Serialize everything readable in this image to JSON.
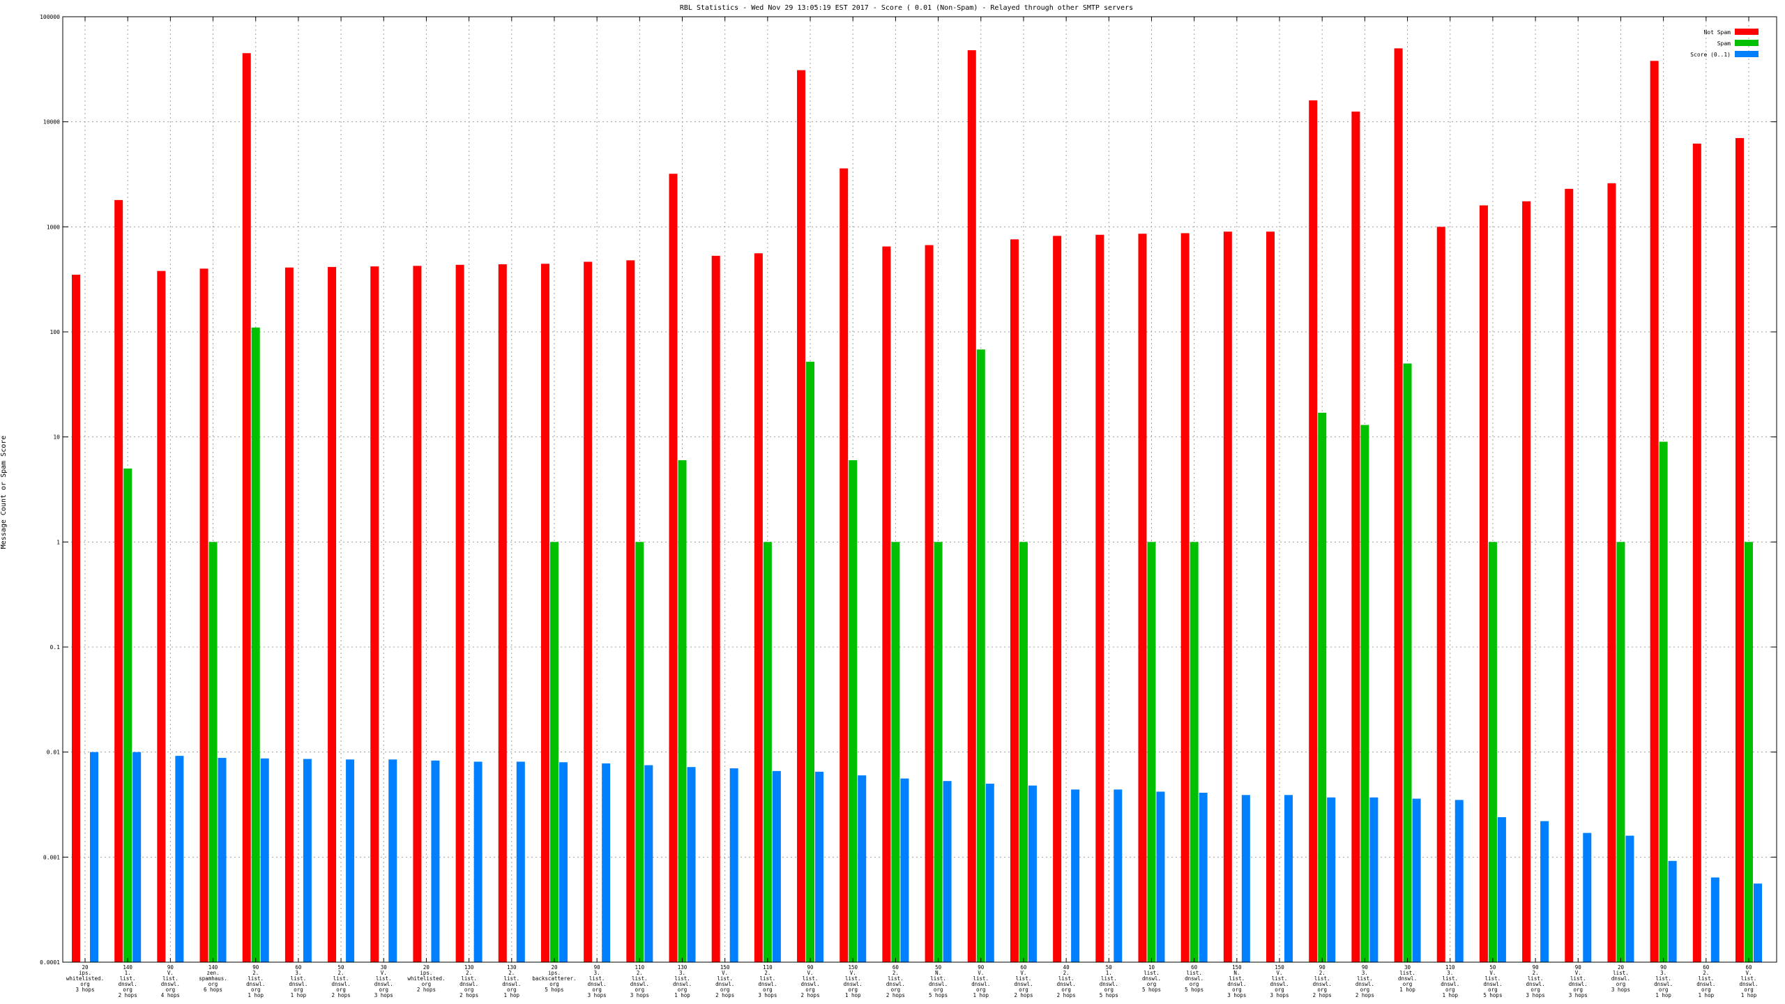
{
  "chart_data": {
    "type": "bar",
    "title": "RBL Statistics - Wed Nov 29 13:05:19 EST 2017 - Score ( 0.01 (Non-Spam) - Relayed through other SMTP servers",
    "ylabel": "Message Count or Spam Score",
    "xlabel": "",
    "yscale": "log",
    "ylim": [
      0.0001,
      100000
    ],
    "yticks": [
      "0.0001",
      "0.001",
      "0.01",
      "0.1",
      "1",
      "10",
      "100",
      "1000",
      "10000",
      "100000"
    ],
    "grid": true,
    "legend_position": "top-right",
    "categories": [
      [
        "20",
        "ips.",
        "whitelisted.",
        "org",
        "3 hops"
      ],
      [
        "140",
        "1.",
        "list.",
        "dnswl.",
        "org",
        "2 hops"
      ],
      [
        "90",
        "V.",
        "list.",
        "dnswl.",
        "org",
        "4 hops"
      ],
      [
        "140",
        "zen.",
        "spamhaus.",
        "org",
        "6 hops"
      ],
      [
        "90",
        "2.",
        "list.",
        "dnswl.",
        "org",
        "1 hop"
      ],
      [
        "60",
        "3.",
        "list.",
        "dnswl.",
        "org",
        "1 hop"
      ],
      [
        "50",
        "2.",
        "list.",
        "dnswl.",
        "org",
        "2 hops"
      ],
      [
        "30",
        "V.",
        "list.",
        "dnswl.",
        "org",
        "3 hops"
      ],
      [
        "20",
        "ips.",
        "whitelisted.",
        "org",
        "2 hops"
      ],
      [
        "130",
        "2.",
        "list.",
        "dnswl.",
        "org",
        "2 hops"
      ],
      [
        "130",
        "2.",
        "list.",
        "dnswl.",
        "org",
        "1 hop"
      ],
      [
        "20",
        "ips.",
        "backscatterer.",
        "org",
        "5 hops"
      ],
      [
        "90",
        "3.",
        "list.",
        "dnswl.",
        "org",
        "3 hops"
      ],
      [
        "110",
        "2.",
        "list.",
        "dnswl.",
        "org",
        "3 hops"
      ],
      [
        "130",
        "3.",
        "list.",
        "dnswl.",
        "org",
        "1 hop"
      ],
      [
        "150",
        "V.",
        "list.",
        "dnswl.",
        "org",
        "2 hops"
      ],
      [
        "110",
        "2.",
        "list.",
        "dnswl.",
        "org",
        "3 hops"
      ],
      [
        "90",
        "V.",
        "list.",
        "dnswl.",
        "org",
        "2 hops"
      ],
      [
        "150",
        "V.",
        "list.",
        "dnswl.",
        "org",
        "1 hop"
      ],
      [
        "60",
        "2.",
        "list.",
        "dnswl.",
        "org",
        "2 hops"
      ],
      [
        "50",
        "N.",
        "list.",
        "dnswl.",
        "org",
        "5 hops"
      ],
      [
        "90",
        "V.",
        "list.",
        "dnswl.",
        "org",
        "1 hop"
      ],
      [
        "60",
        "V.",
        "list.",
        "dnswl.",
        "org",
        "2 hops"
      ],
      [
        "40",
        "2.",
        "list.",
        "dnswl.",
        "org",
        "2 hops"
      ],
      [
        "50",
        "1.",
        "list.",
        "dnswl.",
        "org",
        "5 hops"
      ],
      [
        "10",
        "list.",
        "dnswl.",
        "org",
        "5 hops"
      ],
      [
        "60",
        "list.",
        "dnswl.",
        "org",
        "5 hops"
      ],
      [
        "150",
        "N.",
        "list.",
        "dnswl.",
        "org",
        "3 hops"
      ],
      [
        "150",
        "V.",
        "list.",
        "dnswl.",
        "org",
        "3 hops"
      ],
      [
        "90",
        "2.",
        "list.",
        "dnswl.",
        "org",
        "2 hops"
      ],
      [
        "90",
        "3.",
        "list.",
        "dnswl.",
        "org",
        "2 hops"
      ],
      [
        "30",
        "list.",
        "dnswl.",
        "org",
        "1 hop"
      ],
      [
        "110",
        "3.",
        "list.",
        "dnswl.",
        "org",
        "1 hop"
      ],
      [
        "50",
        "V.",
        "list.",
        "dnswl.",
        "org",
        "5 hops"
      ],
      [
        "90",
        "2.",
        "list.",
        "dnswl.",
        "org",
        "3 hops"
      ],
      [
        "90",
        "V.",
        "list.",
        "dnswl.",
        "org",
        "3 hops"
      ],
      [
        "20",
        "list.",
        "dnswl.",
        "org",
        "3 hops"
      ],
      [
        "90",
        "3.",
        "list.",
        "dnswl.",
        "org",
        "1 hop"
      ],
      [
        "60",
        "2.",
        "list.",
        "dnswl.",
        "org",
        "1 hop"
      ],
      [
        "60",
        "V.",
        "list.",
        "dnswl.",
        "org",
        "1 hop"
      ]
    ],
    "series": [
      {
        "name": "Not Spam",
        "color": "#ff0000",
        "values": [
          350,
          1800,
          380,
          400,
          45000,
          410,
          415,
          420,
          425,
          435,
          440,
          445,
          465,
          480,
          3200,
          530,
          560,
          31000,
          3600,
          650,
          670,
          48000,
          760,
          820,
          840,
          860,
          870,
          900,
          900,
          16000,
          12500,
          50000,
          1000,
          1600,
          1750,
          2300,
          2600,
          38000,
          6200,
          7000
        ]
      },
      {
        "name": "Spam",
        "color": "#00c000",
        "values": [
          null,
          5,
          null,
          1,
          110,
          null,
          null,
          null,
          null,
          null,
          null,
          1,
          null,
          1,
          6,
          null,
          1,
          52,
          6,
          1,
          1,
          68,
          1,
          null,
          null,
          1,
          1,
          null,
          null,
          17,
          13,
          50,
          null,
          1,
          null,
          null,
          1,
          9,
          null,
          1
        ]
      },
      {
        "name": "Score (0..1)",
        "color": "#0080ff",
        "values": [
          0.01,
          0.01,
          0.0092,
          0.0088,
          0.0087,
          0.0086,
          0.0085,
          0.0085,
          0.0083,
          0.0081,
          0.0081,
          0.008,
          0.0078,
          0.0075,
          0.0072,
          0.007,
          0.0066,
          0.0065,
          0.006,
          0.0056,
          0.0053,
          0.005,
          0.0048,
          0.0044,
          0.0044,
          0.0042,
          0.0041,
          0.0039,
          0.0039,
          0.0037,
          0.0037,
          0.0036,
          0.0035,
          0.0024,
          0.0022,
          0.0017,
          0.0016,
          0.00092,
          0.00064,
          0.00056
        ]
      }
    ]
  }
}
